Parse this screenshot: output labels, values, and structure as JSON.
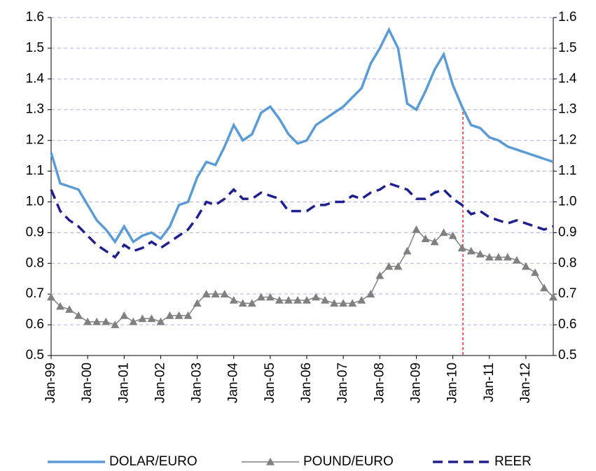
{
  "chart_data": {
    "type": "line",
    "categories": [
      "Jan-99",
      null,
      null,
      null,
      "Jan-00",
      null,
      null,
      null,
      "Jan-01",
      null,
      null,
      null,
      "Jan-02",
      null,
      null,
      null,
      "Jan-03",
      null,
      null,
      null,
      "Jan-04",
      null,
      null,
      null,
      "Jan-05",
      null,
      null,
      null,
      "Jan-06",
      null,
      null,
      null,
      "Jan-07",
      null,
      null,
      null,
      "Jan-08",
      null,
      null,
      null,
      "Jan-09",
      null,
      null,
      null,
      "Jan-10",
      null,
      null,
      null,
      "Jan-11",
      null,
      null,
      null,
      "Jan-12",
      null,
      null,
      null
    ],
    "series": [
      {
        "name": "DOLAR/EURO",
        "color": "#5b9bd5",
        "values": [
          1.16,
          1.06,
          1.05,
          1.04,
          0.99,
          0.94,
          0.91,
          0.87,
          0.92,
          0.87,
          0.89,
          0.9,
          0.88,
          0.92,
          0.99,
          1.0,
          1.08,
          1.13,
          1.12,
          1.18,
          1.25,
          1.2,
          1.22,
          1.29,
          1.31,
          1.27,
          1.22,
          1.19,
          1.2,
          1.25,
          1.27,
          1.29,
          1.31,
          1.34,
          1.37,
          1.45,
          1.5,
          1.56,
          1.5,
          1.32,
          1.3,
          1.36,
          1.43,
          1.48,
          1.38,
          1.31,
          1.25,
          1.24,
          1.21,
          1.2,
          1.18,
          1.17,
          1.16,
          1.15,
          1.14,
          1.13
        ]
      },
      {
        "name": "POUND/EURO",
        "color": "#808080",
        "marker": "triangle",
        "values": [
          0.69,
          0.66,
          0.65,
          0.63,
          0.61,
          0.61,
          0.61,
          0.6,
          0.63,
          0.61,
          0.62,
          0.62,
          0.61,
          0.63,
          0.63,
          0.63,
          0.67,
          0.7,
          0.7,
          0.7,
          0.68,
          0.67,
          0.67,
          0.69,
          0.69,
          0.68,
          0.68,
          0.68,
          0.68,
          0.69,
          0.68,
          0.67,
          0.67,
          0.67,
          0.68,
          0.7,
          0.76,
          0.79,
          0.79,
          0.84,
          0.91,
          0.88,
          0.87,
          0.9,
          0.89,
          0.85,
          0.84,
          0.83,
          0.82,
          0.82,
          0.82,
          0.81,
          0.79,
          0.77,
          0.72,
          0.69
        ]
      },
      {
        "name": "REER",
        "color": "#1f1f8f",
        "dashed": true,
        "values": [
          1.04,
          0.97,
          0.94,
          0.92,
          0.89,
          0.86,
          0.84,
          0.82,
          0.86,
          0.84,
          0.85,
          0.87,
          0.85,
          0.87,
          0.89,
          0.91,
          0.95,
          1.0,
          0.99,
          1.01,
          1.04,
          1.01,
          1.01,
          1.03,
          1.02,
          1.01,
          0.97,
          0.97,
          0.97,
          0.99,
          0.99,
          1.0,
          1.0,
          1.02,
          1.01,
          1.03,
          1.04,
          1.06,
          1.05,
          1.04,
          1.01,
          1.01,
          1.03,
          1.04,
          1.01,
          0.99,
          0.96,
          0.97,
          0.95,
          0.94,
          0.93,
          0.94,
          0.93,
          0.92,
          0.91,
          0.92
        ]
      }
    ],
    "ylim": [
      0.5,
      1.6
    ],
    "yticks": [
      0.5,
      0.6,
      0.7,
      0.8,
      0.9,
      {
        "value": 1,
        "label": "1.0"
      },
      1.1,
      1.2,
      1.3,
      1.4,
      1.5,
      1.6
    ],
    "grid": true
  }
}
